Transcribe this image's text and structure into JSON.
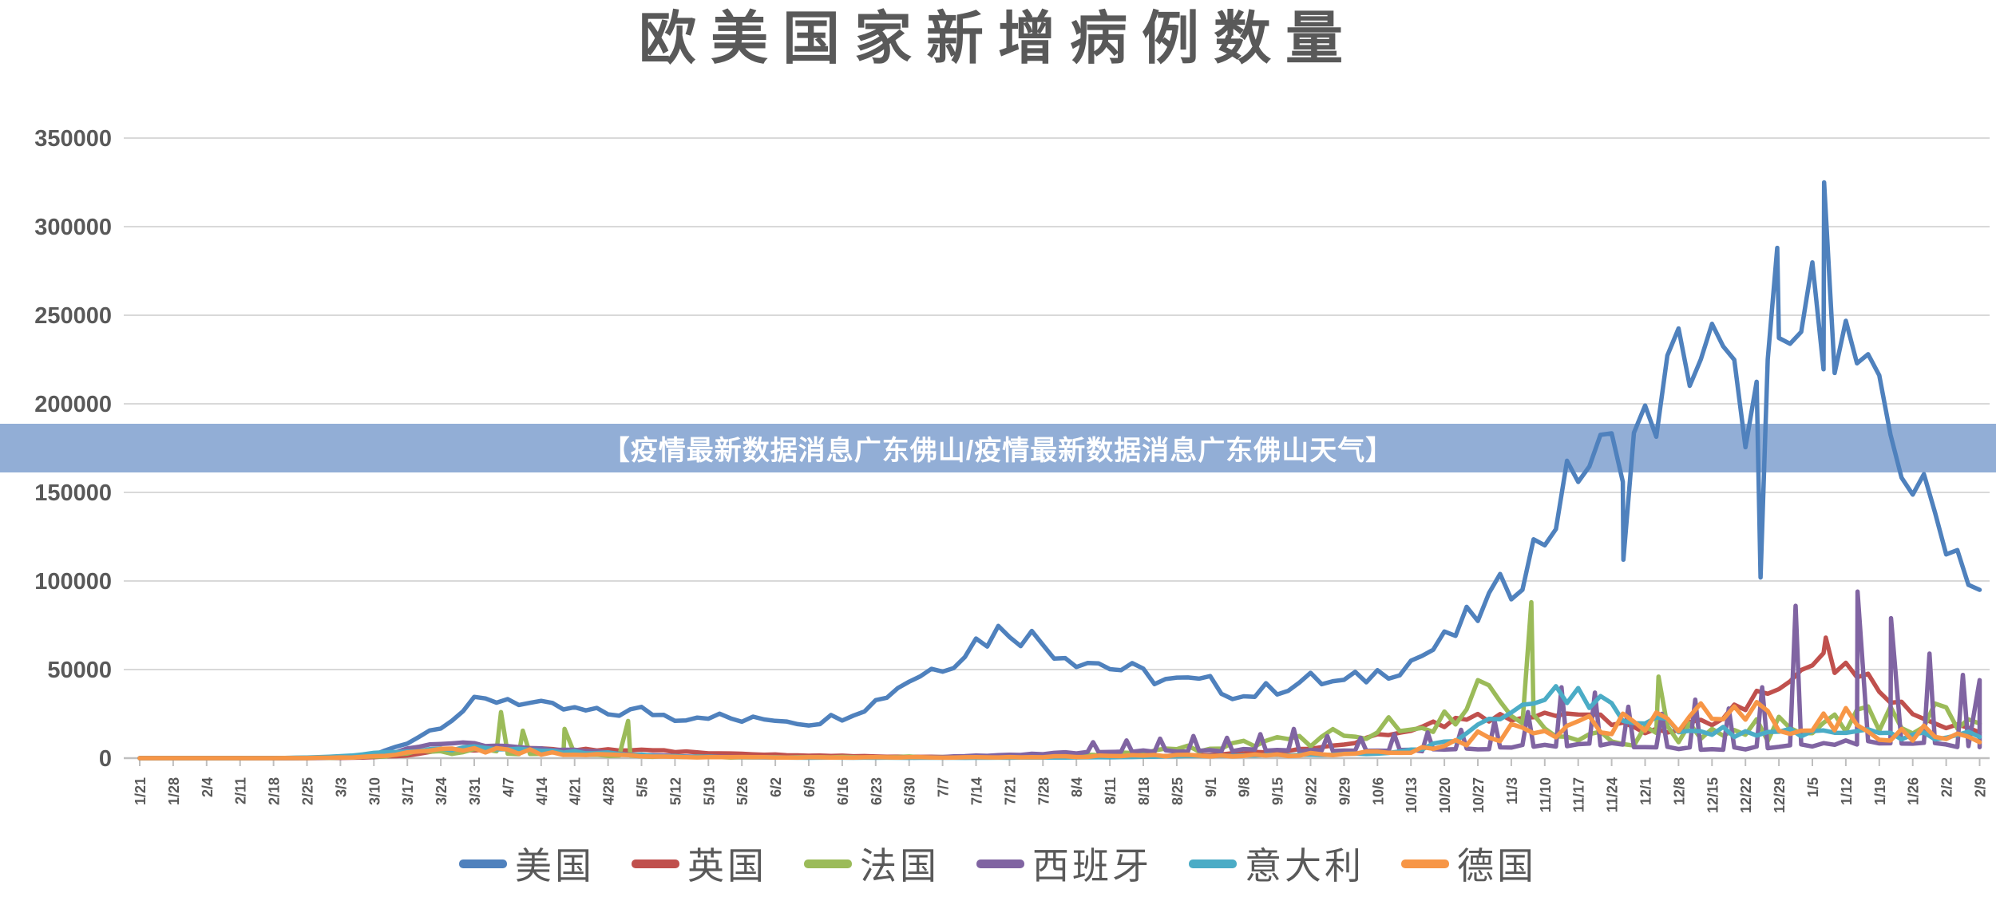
{
  "title": "欧美国家新增病例数量",
  "banner": {
    "text": "【疫情最新数据消息广东佛山/疫情最新数据消息广东佛山天气】",
    "bg": "#92aed6",
    "text_color": "#ffffff"
  },
  "chart_data": {
    "type": "line",
    "title": "欧美国家新增病例数量",
    "xlabel": "",
    "ylabel": "",
    "grid": true,
    "legend_position": "bottom",
    "y_axis": {
      "min": 0,
      "max": 350000,
      "tick_step": 50000
    },
    "x_labels": [
      "1/21",
      "1/28",
      "2/4",
      "2/11",
      "2/18",
      "2/25",
      "3/3",
      "3/10",
      "3/17",
      "3/24",
      "3/31",
      "4/7",
      "4/14",
      "4/21",
      "4/28",
      "5/5",
      "5/12",
      "5/19",
      "5/26",
      "6/2",
      "6/9",
      "6/16",
      "6/23",
      "6/30",
      "7/7",
      "7/14",
      "7/21",
      "7/28",
      "8/4",
      "8/11",
      "8/18",
      "8/25",
      "9/1",
      "9/8",
      "9/15",
      "9/22",
      "9/29",
      "10/6",
      "10/13",
      "10/20",
      "10/27",
      "11/3",
      "11/10",
      "11/17",
      "11/24",
      "12/1",
      "12/8",
      "12/15",
      "12/22",
      "12/29",
      "1/5",
      "1/12",
      "1/19",
      "1/26",
      "2/2",
      "2/9"
    ],
    "series": [
      {
        "name": "美国",
        "color": "#4F81BD",
        "jitter": 0.12,
        "weekly_values": [
          0,
          0,
          0,
          0,
          0,
          100,
          400,
          1800,
          9000,
          19000,
          31000,
          34000,
          29000,
          27000,
          25000,
          27000,
          23000,
          24500,
          21000,
          22500,
          20000,
          24000,
          32000,
          45000,
          53000,
          66000,
          74000,
          65000,
          57000,
          52000,
          47000,
          43000,
          42000,
          35000,
          40000,
          44000,
          42000,
          48000,
          55000,
          65000,
          82000,
          99000,
          126000,
          165000,
          172000,
          185000,
          225000,
          230000,
          195000,
          215000,
          255000,
          235000,
          195000,
          155000,
          128000,
          95000
        ],
        "spikes": [
          [
            44.35,
            112000
          ],
          [
            48.45,
            102000
          ],
          [
            48.95,
            288000
          ],
          [
            50.35,
            325000
          ]
        ]
      },
      {
        "name": "英国",
        "color": "#C0504D",
        "jitter": 0.15,
        "weekly_values": [
          0,
          0,
          0,
          0,
          0,
          20,
          100,
          500,
          1600,
          4300,
          4900,
          5400,
          5100,
          4700,
          4400,
          4700,
          3700,
          3100,
          2400,
          1900,
          1600,
          1250,
          1000,
          820,
          640,
          660,
          700,
          790,
          900,
          1080,
          1100,
          1300,
          1800,
          2900,
          3900,
          5100,
          7000,
          12500,
          16500,
          20000,
          22500,
          23500,
          24500,
          25000,
          21500,
          16000,
          17500,
          21000,
          30000,
          40000,
          57000,
          55000,
          39000,
          27500,
          19500,
          14500
        ],
        "spikes": [
          [
            50.4,
            68000
          ]
        ]
      },
      {
        "name": "法国",
        "color": "#9BBB59",
        "jitter": 0.45,
        "weekly_values": [
          0,
          0,
          0,
          0,
          10,
          40,
          250,
          900,
          2600,
          3900,
          4400,
          3900,
          3300,
          2600,
          1700,
          1300,
          850,
          700,
          580,
          500,
          450,
          500,
          560,
          700,
          820,
          950,
          1150,
          1350,
          1900,
          2400,
          3000,
          4600,
          5600,
          7800,
          9700,
          11600,
          12600,
          14700,
          18500,
          26000,
          36000,
          30000,
          24000,
          16000,
          12000,
          13000,
          13500,
          14000,
          15500,
          17000,
          19000,
          20500,
          21500,
          22000,
          21500,
          19500
        ],
        "spikes": [
          [
            10.8,
            26000
          ],
          [
            11.45,
            15500
          ],
          [
            12.7,
            16500
          ],
          [
            14.6,
            21000
          ],
          [
            41.6,
            88000
          ],
          [
            45.4,
            46000
          ]
        ]
      },
      {
        "name": "西班牙",
        "color": "#8064A2",
        "jitter": 0.15,
        "weekly_values": [
          0,
          0,
          0,
          0,
          0,
          30,
          350,
          1700,
          5000,
          7800,
          8600,
          6600,
          5100,
          4300,
          3100,
          1900,
          1100,
          750,
          520,
          420,
          360,
          310,
          360,
          420,
          650,
          1300,
          1900,
          2600,
          3100,
          3600,
          3900,
          4100,
          4300,
          4600,
          4300,
          4100,
          3900,
          4100,
          4300,
          4600,
          5200,
          6200,
          7200,
          8200,
          7600,
          6200,
          5600,
          5200,
          5700,
          6200,
          7200,
          9200,
          8700,
          8200,
          7200,
          6200
        ],
        "spikes": [
          [
            28.5,
            9000
          ],
          [
            29.5,
            10000
          ],
          [
            30.5,
            11000
          ],
          [
            31.5,
            12500
          ],
          [
            32.5,
            11500
          ],
          [
            33.5,
            13500
          ],
          [
            34.5,
            16500
          ],
          [
            35.5,
            12500
          ],
          [
            36.5,
            11500
          ],
          [
            37.5,
            13500
          ],
          [
            38.5,
            14500
          ],
          [
            39.5,
            16000
          ],
          [
            40.5,
            21000
          ],
          [
            41.5,
            26000
          ],
          [
            42.5,
            40000
          ],
          [
            43.5,
            37000
          ],
          [
            44.5,
            29000
          ],
          [
            45.5,
            25000
          ],
          [
            46.5,
            33000
          ],
          [
            47.5,
            28000
          ],
          [
            48.5,
            40000
          ],
          [
            49.5,
            86000
          ],
          [
            51.35,
            94000
          ],
          [
            52.35,
            79000
          ],
          [
            53.5,
            59000
          ],
          [
            54.5,
            47000
          ],
          [
            55,
            44000
          ]
        ]
      },
      {
        "name": "意大利",
        "color": "#4BACC6",
        "jitter": 0.2,
        "weekly_values": [
          0,
          0,
          0,
          0,
          70,
          350,
          1300,
          2600,
          3600,
          5400,
          5700,
          4700,
          3900,
          3400,
          2700,
          1700,
          1100,
          750,
          550,
          380,
          290,
          260,
          240,
          210,
          200,
          230,
          280,
          380,
          480,
          550,
          700,
          1000,
          1300,
          1500,
          1700,
          1900,
          2300,
          3100,
          4600,
          8500,
          16000,
          27000,
          35000,
          36500,
          28000,
          21500,
          17500,
          15500,
          14500,
          14000,
          15500,
          16500,
          13000,
          12500,
          13500,
          12000
        ],
        "spikes": []
      },
      {
        "name": "德国",
        "color": "#F79646",
        "jitter": 0.4,
        "weekly_values": [
          0,
          0,
          0,
          0,
          15,
          80,
          350,
          1000,
          2700,
          4300,
          5200,
          4500,
          3100,
          2200,
          1600,
          1100,
          800,
          620,
          500,
          420,
          360,
          400,
          440,
          400,
          400,
          440,
          500,
          700,
          950,
          1250,
          1450,
          1400,
          1350,
          1550,
          1850,
          2150,
          2450,
          2900,
          4200,
          6800,
          11500,
          15500,
          17500,
          18500,
          18000,
          18500,
          20500,
          23000,
          24500,
          20000,
          18500,
          20500,
          16500,
          14000,
          12000,
          9000
        ],
        "spikes": []
      }
    ]
  }
}
